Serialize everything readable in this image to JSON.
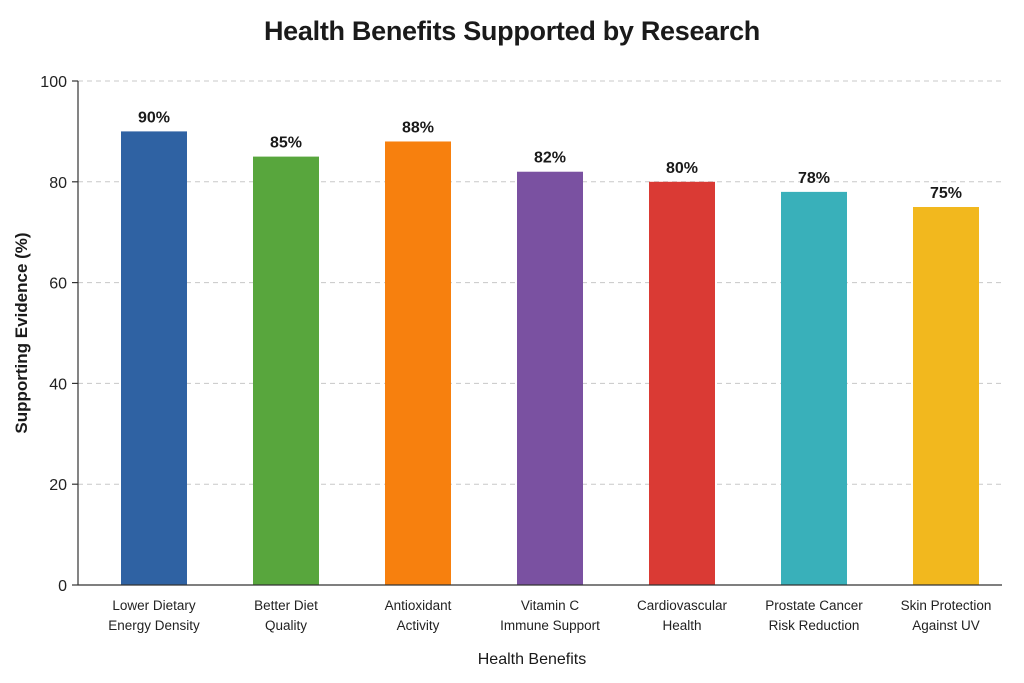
{
  "chart_data": {
    "type": "bar",
    "title": "Health Benefits Supported by Research",
    "xlabel": "Health Benefits",
    "ylabel": "Supporting Evidence (%)",
    "ylim": [
      0,
      100
    ],
    "yticks": [
      0,
      20,
      40,
      60,
      80,
      100
    ],
    "grid": true,
    "categories": [
      [
        "Lower Dietary",
        "Energy Density"
      ],
      [
        "Better Diet",
        "Quality"
      ],
      [
        "Antioxidant",
        "Activity"
      ],
      [
        "Vitamin C",
        "Immune Support"
      ],
      [
        "Cardiovascular",
        "Health"
      ],
      [
        "Prostate Cancer",
        "Risk Reduction"
      ],
      [
        "Skin Protection",
        "Against UV"
      ]
    ],
    "values": [
      90,
      85,
      88,
      82,
      80,
      78,
      75
    ],
    "value_labels": [
      "90%",
      "85%",
      "88%",
      "82%",
      "80%",
      "78%",
      "75%"
    ],
    "colors": [
      "#2f62a3",
      "#58a63d",
      "#f7800e",
      "#7a51a1",
      "#da3a34",
      "#39b0ba",
      "#f2b81e"
    ]
  }
}
